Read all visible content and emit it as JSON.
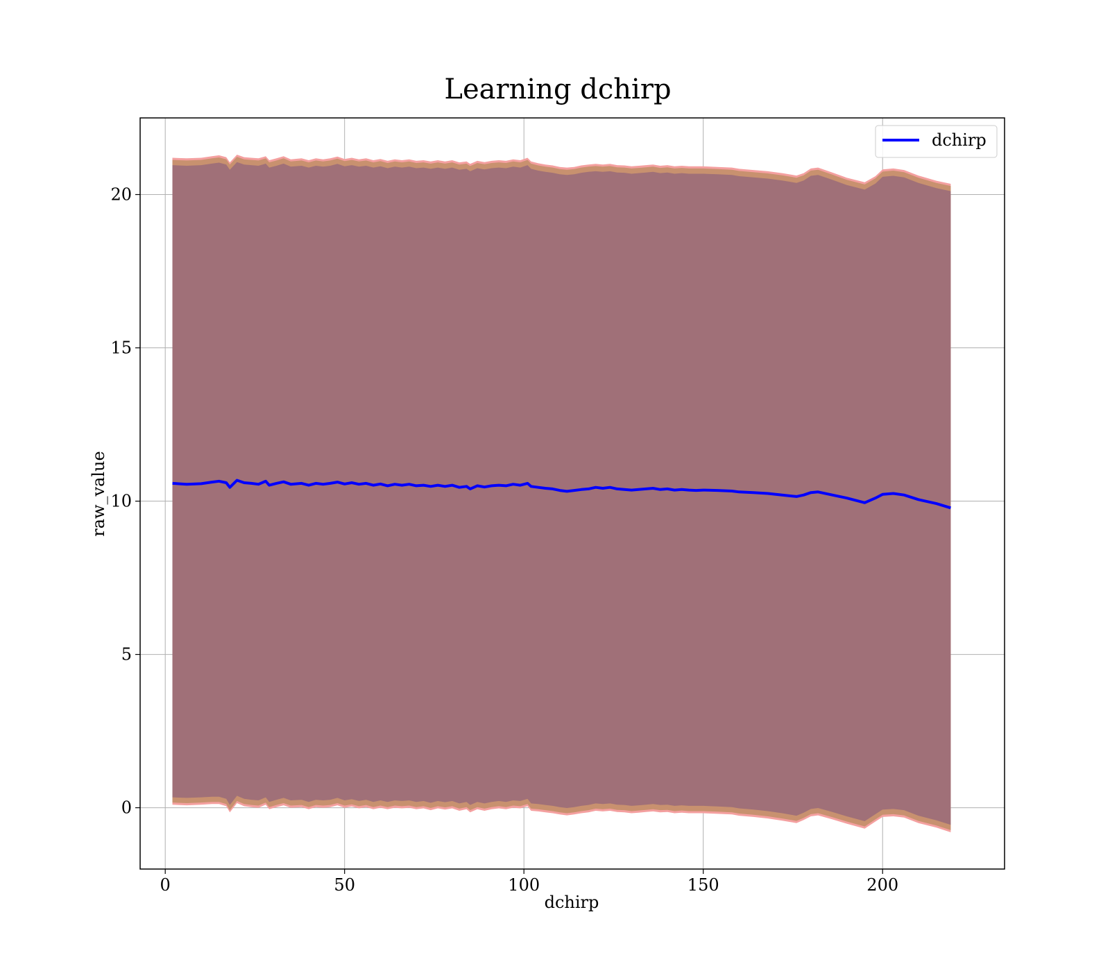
{
  "chart_data": {
    "type": "line",
    "title": "Learning dchirp",
    "xlabel": "dchirp",
    "ylabel": "raw_value",
    "xlim": [
      -7,
      234
    ],
    "ylim": [
      -2,
      22.5
    ],
    "xticks": [
      0,
      50,
      100,
      150,
      200
    ],
    "yticks": [
      0,
      5,
      10,
      15,
      20
    ],
    "grid": true,
    "legend": {
      "position": "top-right",
      "entries": [
        "dchirp"
      ]
    },
    "colors": {
      "line": "#0000ff",
      "outer_band": "#f4a0a0",
      "middle_band": "#c8916f",
      "inner_band": "#a07078",
      "grid": "#b0b0b0"
    },
    "series": [
      {
        "name": "dchirp",
        "x": [
          2,
          6,
          10,
          13,
          15,
          17,
          18,
          20,
          22,
          24,
          26,
          28,
          29,
          31,
          33,
          35,
          38,
          40,
          42,
          44,
          46,
          48,
          50,
          52,
          54,
          56,
          58,
          60,
          62,
          64,
          66,
          68,
          70,
          72,
          74,
          76,
          78,
          80,
          82,
          84,
          85,
          87,
          89,
          91,
          93,
          95,
          97,
          99,
          101,
          102,
          104,
          106,
          108,
          110,
          112,
          114,
          116,
          118,
          120,
          122,
          124,
          126,
          128,
          130,
          132,
          134,
          136,
          138,
          140,
          142,
          144,
          146,
          148,
          150,
          154,
          158,
          160,
          164,
          168,
          172,
          176,
          178,
          180,
          182,
          186,
          190,
          195,
          198,
          200,
          203,
          206,
          210,
          215,
          219
        ],
        "values": [
          10.58,
          10.55,
          10.57,
          10.62,
          10.65,
          10.6,
          10.45,
          10.68,
          10.6,
          10.58,
          10.55,
          10.65,
          10.52,
          10.58,
          10.63,
          10.55,
          10.58,
          10.52,
          10.58,
          10.55,
          10.58,
          10.62,
          10.56,
          10.6,
          10.55,
          10.58,
          10.52,
          10.56,
          10.5,
          10.55,
          10.52,
          10.55,
          10.5,
          10.52,
          10.48,
          10.52,
          10.48,
          10.52,
          10.45,
          10.48,
          10.4,
          10.5,
          10.46,
          10.5,
          10.52,
          10.5,
          10.55,
          10.52,
          10.58,
          10.48,
          10.45,
          10.42,
          10.4,
          10.35,
          10.32,
          10.35,
          10.38,
          10.4,
          10.45,
          10.42,
          10.45,
          10.4,
          10.38,
          10.36,
          10.38,
          10.4,
          10.42,
          10.38,
          10.4,
          10.36,
          10.38,
          10.36,
          10.35,
          10.36,
          10.35,
          10.33,
          10.3,
          10.28,
          10.25,
          10.2,
          10.15,
          10.2,
          10.28,
          10.3,
          10.2,
          10.1,
          9.95,
          10.1,
          10.22,
          10.25,
          10.2,
          10.05,
          9.92,
          9.78
        ],
        "band_upper": [
          21.2,
          21.18,
          21.2,
          21.25,
          21.28,
          21.22,
          21.05,
          21.3,
          21.22,
          21.2,
          21.18,
          21.25,
          21.12,
          21.18,
          21.25,
          21.15,
          21.18,
          21.12,
          21.18,
          21.15,
          21.18,
          21.24,
          21.16,
          21.2,
          21.15,
          21.18,
          21.12,
          21.16,
          21.1,
          21.15,
          21.12,
          21.15,
          21.1,
          21.12,
          21.08,
          21.12,
          21.08,
          21.12,
          21.05,
          21.08,
          21.0,
          21.1,
          21.06,
          21.1,
          21.12,
          21.1,
          21.15,
          21.12,
          21.2,
          21.08,
          21.02,
          20.98,
          20.95,
          20.9,
          20.88,
          20.9,
          20.95,
          20.98,
          21.0,
          20.98,
          21.0,
          20.96,
          20.95,
          20.92,
          20.94,
          20.96,
          20.98,
          20.94,
          20.96,
          20.92,
          20.94,
          20.92,
          20.92,
          20.92,
          20.9,
          20.88,
          20.84,
          20.8,
          20.76,
          20.7,
          20.62,
          20.7,
          20.85,
          20.88,
          20.72,
          20.55,
          20.4,
          20.6,
          20.82,
          20.85,
          20.8,
          20.62,
          20.45,
          20.35
        ],
        "band_lower": [
          0.1,
          0.08,
          0.1,
          0.12,
          0.12,
          0.05,
          -0.15,
          0.15,
          0.05,
          0.02,
          0.0,
          0.1,
          -0.05,
          0.02,
          0.08,
          0.0,
          0.02,
          -0.05,
          0.02,
          0.0,
          0.02,
          0.08,
          0.0,
          0.04,
          -0.02,
          0.02,
          -0.05,
          0.0,
          -0.05,
          0.0,
          -0.02,
          0.0,
          -0.05,
          -0.02,
          -0.08,
          -0.02,
          -0.06,
          -0.02,
          -0.1,
          -0.05,
          -0.15,
          -0.05,
          -0.1,
          -0.05,
          -0.02,
          -0.05,
          0.0,
          -0.02,
          0.05,
          -0.1,
          -0.12,
          -0.15,
          -0.18,
          -0.22,
          -0.25,
          -0.22,
          -0.18,
          -0.15,
          -0.1,
          -0.12,
          -0.1,
          -0.14,
          -0.15,
          -0.18,
          -0.16,
          -0.14,
          -0.12,
          -0.15,
          -0.14,
          -0.18,
          -0.16,
          -0.18,
          -0.18,
          -0.18,
          -0.2,
          -0.22,
          -0.26,
          -0.3,
          -0.35,
          -0.42,
          -0.5,
          -0.4,
          -0.28,
          -0.25,
          -0.38,
          -0.52,
          -0.68,
          -0.45,
          -0.3,
          -0.28,
          -0.32,
          -0.5,
          -0.65,
          -0.8
        ]
      }
    ]
  }
}
